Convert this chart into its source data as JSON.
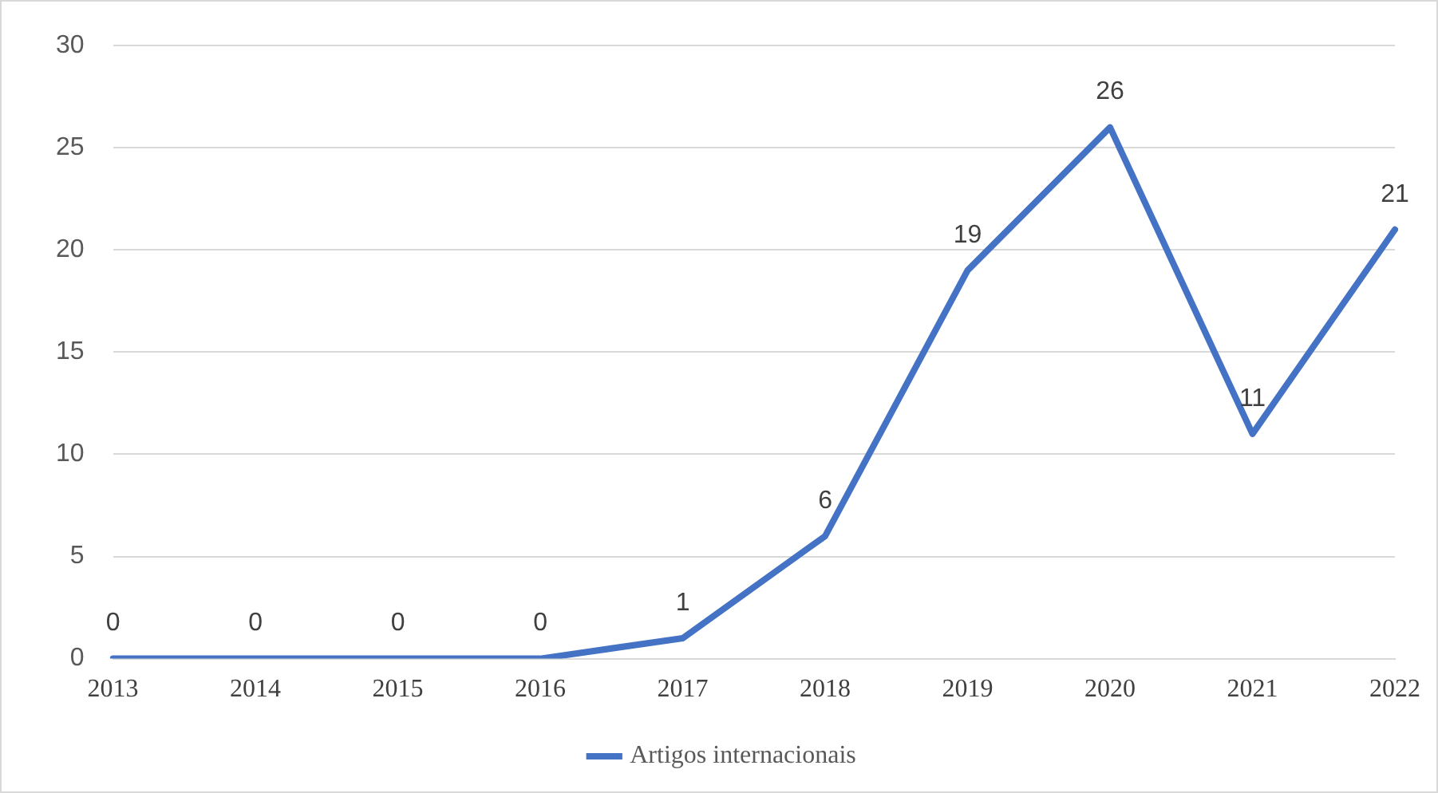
{
  "chart_data": {
    "type": "line",
    "categories": [
      "2013",
      "2014",
      "2015",
      "2016",
      "2017",
      "2018",
      "2019",
      "2020",
      "2021",
      "2022"
    ],
    "series": [
      {
        "name": "Artigos internacionais",
        "color": "#4472c4",
        "values": [
          0,
          0,
          0,
          0,
          1,
          6,
          19,
          26,
          11,
          21
        ]
      }
    ],
    "ylim": [
      0,
      30
    ],
    "yticks": [
      0,
      5,
      10,
      15,
      20,
      25,
      30
    ],
    "grid": "y",
    "legend": "bottom",
    "data_labels": true,
    "marker": "none",
    "line_style": "solid"
  }
}
